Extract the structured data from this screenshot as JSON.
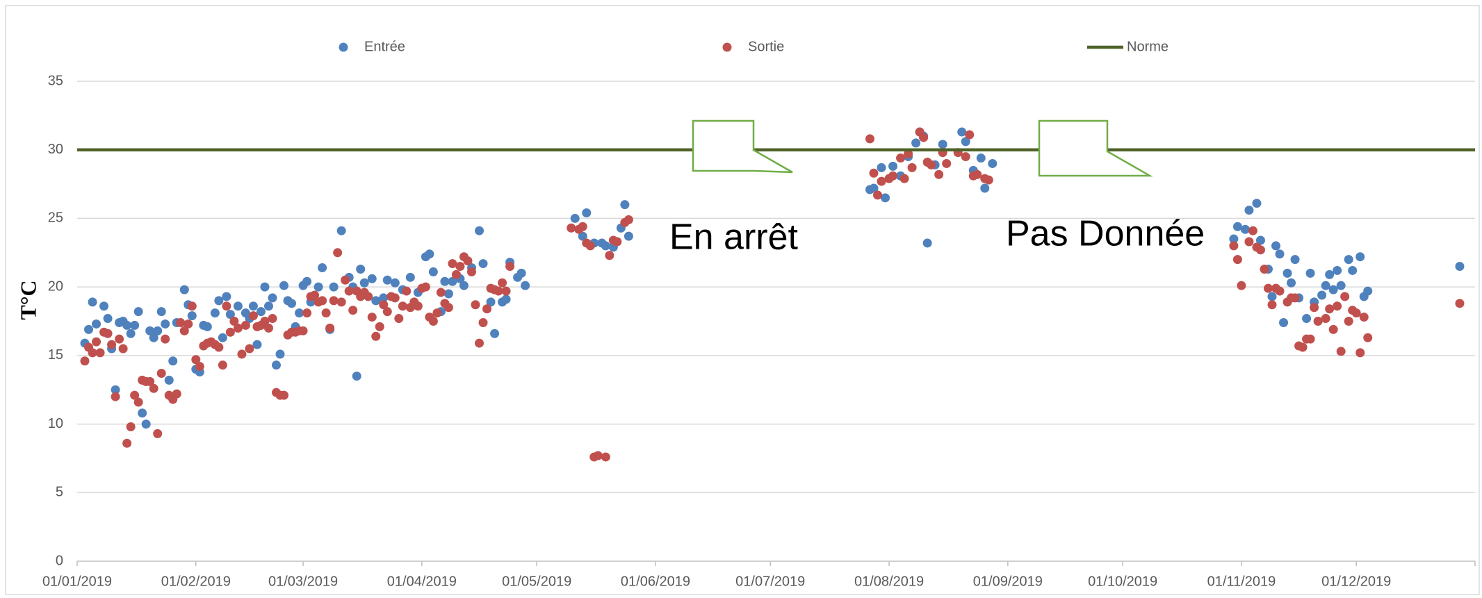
{
  "chart_data": {
    "type": "scatter",
    "ylabel": "T°C",
    "annotations": [
      "En arrêt",
      "Pas Donnée"
    ],
    "xlim": [
      "2019-01-01",
      "2020-01-01"
    ],
    "xticks": [
      {
        "value": "2019-01-01",
        "label": "01/01/2019"
      },
      {
        "value": "2019-02-01",
        "label": "01/02/2019"
      },
      {
        "value": "2019-03-01",
        "label": "01/03/2019"
      },
      {
        "value": "2019-04-01",
        "label": "01/04/2019"
      },
      {
        "value": "2019-05-01",
        "label": "01/05/2019"
      },
      {
        "value": "2019-06-01",
        "label": "01/06/2019"
      },
      {
        "value": "2019-07-01",
        "label": "01/07/2019"
      },
      {
        "value": "2019-08-01",
        "label": "01/08/2019"
      },
      {
        "value": "2019-09-01",
        "label": "01/09/2019"
      },
      {
        "value": "2019-10-01",
        "label": "01/10/2019"
      },
      {
        "value": "2019-11-01",
        "label": "01/11/2019"
      },
      {
        "value": "2019-12-01",
        "label": "01/12/2019"
      }
    ],
    "ylim": [
      0,
      35
    ],
    "yticks": [
      0,
      5,
      10,
      15,
      20,
      25,
      30,
      35
    ],
    "grid": true,
    "legend": "top",
    "series": [
      {
        "name": "Entrée",
        "color": "#4f81bd",
        "type": "scatter",
        "x": [
          "2019-01-03",
          "2019-01-04",
          "2019-01-05",
          "2019-01-06",
          "2019-01-08",
          "2019-01-09",
          "2019-01-10",
          "2019-01-11",
          "2019-01-12",
          "2019-01-13",
          "2019-01-14",
          "2019-01-15",
          "2019-01-16",
          "2019-01-17",
          "2019-01-18",
          "2019-01-19",
          "2019-01-20",
          "2019-01-21",
          "2019-01-22",
          "2019-01-23",
          "2019-01-24",
          "2019-01-25",
          "2019-01-26",
          "2019-01-27",
          "2019-01-29",
          "2019-01-30",
          "2019-01-31",
          "2019-02-01",
          "2019-02-02",
          "2019-02-03",
          "2019-02-04",
          "2019-02-06",
          "2019-02-07",
          "2019-02-08",
          "2019-02-09",
          "2019-02-10",
          "2019-02-12",
          "2019-02-14",
          "2019-02-15",
          "2019-02-16",
          "2019-02-17",
          "2019-02-18",
          "2019-02-19",
          "2019-02-20",
          "2019-02-21",
          "2019-02-22",
          "2019-02-23",
          "2019-02-24",
          "2019-02-25",
          "2019-02-26",
          "2019-02-27",
          "2019-02-28",
          "2019-03-01",
          "2019-03-02",
          "2019-03-03",
          "2019-03-05",
          "2019-03-06",
          "2019-03-08",
          "2019-03-09",
          "2019-03-11",
          "2019-03-13",
          "2019-03-14",
          "2019-03-15",
          "2019-03-16",
          "2019-03-17",
          "2019-03-19",
          "2019-03-20",
          "2019-03-22",
          "2019-03-23",
          "2019-03-25",
          "2019-03-27",
          "2019-03-29",
          "2019-03-31",
          "2019-04-02",
          "2019-04-03",
          "2019-04-04",
          "2019-04-06",
          "2019-04-07",
          "2019-04-08",
          "2019-04-09",
          "2019-04-11",
          "2019-04-12",
          "2019-04-14",
          "2019-04-16",
          "2019-04-17",
          "2019-04-19",
          "2019-04-20",
          "2019-04-22",
          "2019-04-23",
          "2019-04-24",
          "2019-04-26",
          "2019-04-27",
          "2019-04-28",
          "2019-05-11",
          "2019-05-13",
          "2019-05-14",
          "2019-05-16",
          "2019-05-18",
          "2019-05-19",
          "2019-05-21",
          "2019-05-23",
          "2019-05-24",
          "2019-05-25",
          "2019-07-27",
          "2019-07-28",
          "2019-07-30",
          "2019-07-31",
          "2019-08-02",
          "2019-08-04",
          "2019-08-06",
          "2019-08-08",
          "2019-08-09",
          "2019-08-10",
          "2019-08-11",
          "2019-08-13",
          "2019-08-15",
          "2019-08-20",
          "2019-08-21",
          "2019-08-23",
          "2019-08-25",
          "2019-08-26",
          "2019-08-28",
          "2019-10-30",
          "2019-10-31",
          "2019-11-02",
          "2019-11-03",
          "2019-11-05",
          "2019-11-06",
          "2019-11-08",
          "2019-11-09",
          "2019-11-10",
          "2019-11-11",
          "2019-11-12",
          "2019-11-13",
          "2019-11-14",
          "2019-11-15",
          "2019-11-16",
          "2019-11-18",
          "2019-11-19",
          "2019-11-20",
          "2019-11-22",
          "2019-11-23",
          "2019-11-24",
          "2019-11-25",
          "2019-11-26",
          "2019-11-27",
          "2019-11-29",
          "2019-11-30",
          "2019-12-02",
          "2019-12-03",
          "2019-12-04",
          "2019-12-28"
        ],
        "values": [
          15.9,
          16.9,
          18.9,
          17.3,
          18.6,
          17.7,
          15.5,
          12.5,
          17.4,
          17.5,
          17.2,
          16.6,
          17.2,
          18.2,
          10.8,
          10.0,
          16.8,
          16.3,
          16.8,
          18.2,
          17.3,
          13.2,
          14.6,
          17.4,
          19.8,
          18.7,
          17.9,
          14.0,
          13.8,
          17.2,
          17.1,
          18.1,
          19.0,
          16.3,
          19.3,
          18.0,
          18.6,
          18.1,
          17.7,
          18.6,
          15.8,
          18.2,
          20.0,
          18.6,
          19.2,
          14.3,
          15.1,
          20.1,
          19.0,
          18.8,
          17.1,
          18.1,
          20.1,
          20.4,
          18.9,
          20.0,
          21.4,
          16.9,
          20.0,
          24.1,
          20.7,
          20.0,
          13.5,
          21.3,
          20.3,
          20.6,
          19.0,
          19.2,
          20.5,
          20.3,
          19.8,
          20.7,
          19.6,
          22.2,
          22.4,
          21.1,
          18.2,
          20.4,
          19.5,
          20.4,
          20.6,
          20.1,
          21.4,
          24.1,
          21.7,
          18.9,
          16.6,
          18.9,
          19.1,
          21.8,
          20.7,
          21.0,
          20.1,
          25.0,
          23.7,
          25.4,
          23.2,
          23.2,
          23.0,
          22.9,
          24.3,
          26.0,
          23.7,
          27.1,
          27.2,
          28.7,
          26.5,
          28.8,
          28.1,
          29.5,
          30.5,
          31.3,
          31.0,
          23.2,
          28.9,
          30.4,
          31.3,
          30.6,
          28.5,
          29.4,
          27.2,
          29.0,
          23.5,
          24.4,
          24.2,
          25.6,
          26.1,
          23.4,
          21.3,
          19.3,
          23.0,
          22.4,
          17.4,
          21.0,
          20.3,
          22.0,
          19.2,
          17.7,
          21.0,
          18.9,
          19.4,
          20.1,
          20.9,
          19.8,
          21.2,
          20.1,
          22.0,
          21.2,
          22.2,
          19.3,
          19.7,
          21.5
        ]
      },
      {
        "name": "Sortie",
        "color": "#c0504d",
        "type": "scatter",
        "x": [
          "2019-01-03",
          "2019-01-04",
          "2019-01-05",
          "2019-01-06",
          "2019-01-07",
          "2019-01-08",
          "2019-01-09",
          "2019-01-10",
          "2019-01-11",
          "2019-01-12",
          "2019-01-13",
          "2019-01-14",
          "2019-01-15",
          "2019-01-16",
          "2019-01-17",
          "2019-01-18",
          "2019-01-19",
          "2019-01-20",
          "2019-01-21",
          "2019-01-22",
          "2019-01-23",
          "2019-01-24",
          "2019-01-25",
          "2019-01-26",
          "2019-01-27",
          "2019-01-28",
          "2019-01-29",
          "2019-01-30",
          "2019-01-31",
          "2019-02-01",
          "2019-02-02",
          "2019-02-03",
          "2019-02-04",
          "2019-02-05",
          "2019-02-06",
          "2019-02-07",
          "2019-02-08",
          "2019-02-09",
          "2019-02-10",
          "2019-02-11",
          "2019-02-12",
          "2019-02-13",
          "2019-02-14",
          "2019-02-15",
          "2019-02-16",
          "2019-02-17",
          "2019-02-18",
          "2019-02-19",
          "2019-02-20",
          "2019-02-21",
          "2019-02-22",
          "2019-02-23",
          "2019-02-24",
          "2019-02-25",
          "2019-02-26",
          "2019-02-27",
          "2019-02-28",
          "2019-03-01",
          "2019-03-02",
          "2019-03-03",
          "2019-03-04",
          "2019-03-05",
          "2019-03-06",
          "2019-03-07",
          "2019-03-08",
          "2019-03-09",
          "2019-03-10",
          "2019-03-11",
          "2019-03-12",
          "2019-03-13",
          "2019-03-14",
          "2019-03-15",
          "2019-03-16",
          "2019-03-17",
          "2019-03-18",
          "2019-03-19",
          "2019-03-20",
          "2019-03-21",
          "2019-03-22",
          "2019-03-23",
          "2019-03-24",
          "2019-03-25",
          "2019-03-26",
          "2019-03-27",
          "2019-03-28",
          "2019-03-29",
          "2019-03-30",
          "2019-03-31",
          "2019-04-01",
          "2019-04-02",
          "2019-04-03",
          "2019-04-04",
          "2019-04-05",
          "2019-04-06",
          "2019-04-07",
          "2019-04-08",
          "2019-04-09",
          "2019-04-10",
          "2019-04-11",
          "2019-04-12",
          "2019-04-13",
          "2019-04-14",
          "2019-04-15",
          "2019-04-16",
          "2019-04-17",
          "2019-04-18",
          "2019-04-19",
          "2019-04-20",
          "2019-04-21",
          "2019-04-22",
          "2019-04-23",
          "2019-04-24",
          "2019-05-10",
          "2019-05-12",
          "2019-05-13",
          "2019-05-14",
          "2019-05-15",
          "2019-05-16",
          "2019-05-17",
          "2019-05-19",
          "2019-05-20",
          "2019-05-21",
          "2019-05-22",
          "2019-05-24",
          "2019-05-25",
          "2019-07-27",
          "2019-07-28",
          "2019-07-29",
          "2019-07-30",
          "2019-08-01",
          "2019-08-02",
          "2019-08-04",
          "2019-08-05",
          "2019-08-06",
          "2019-08-07",
          "2019-08-09",
          "2019-08-10",
          "2019-08-11",
          "2019-08-12",
          "2019-08-14",
          "2019-08-15",
          "2019-08-16",
          "2019-08-19",
          "2019-08-21",
          "2019-08-22",
          "2019-08-23",
          "2019-08-24",
          "2019-08-26",
          "2019-08-27",
          "2019-10-30",
          "2019-10-31",
          "2019-11-01",
          "2019-11-03",
          "2019-11-04",
          "2019-11-05",
          "2019-11-06",
          "2019-11-07",
          "2019-11-08",
          "2019-11-09",
          "2019-11-10",
          "2019-11-11",
          "2019-11-13",
          "2019-11-14",
          "2019-11-15",
          "2019-11-16",
          "2019-11-17",
          "2019-11-18",
          "2019-11-19",
          "2019-11-20",
          "2019-11-21",
          "2019-11-23",
          "2019-11-24",
          "2019-11-25",
          "2019-11-26",
          "2019-11-27",
          "2019-11-28",
          "2019-11-29",
          "2019-11-30",
          "2019-12-01",
          "2019-12-02",
          "2019-12-03",
          "2019-12-04",
          "2019-12-28"
        ],
        "values": [
          14.6,
          15.6,
          15.2,
          16.0,
          15.2,
          16.7,
          16.6,
          15.8,
          12.0,
          16.2,
          15.5,
          8.6,
          9.8,
          12.1,
          11.6,
          13.2,
          13.1,
          13.1,
          12.6,
          9.3,
          13.7,
          16.2,
          12.1,
          11.8,
          12.2,
          17.4,
          16.8,
          17.3,
          18.6,
          14.7,
          14.2,
          15.7,
          15.9,
          16.0,
          15.8,
          15.6,
          14.3,
          18.6,
          16.7,
          17.5,
          17.0,
          15.1,
          17.2,
          15.5,
          17.9,
          17.1,
          17.2,
          17.5,
          17.0,
          17.7,
          12.3,
          12.1,
          12.1,
          16.5,
          16.7,
          16.7,
          16.8,
          16.8,
          18.1,
          19.3,
          19.4,
          18.9,
          19.0,
          18.1,
          17.0,
          19.0,
          22.5,
          18.9,
          20.5,
          19.7,
          18.3,
          19.7,
          19.3,
          19.6,
          19.3,
          17.8,
          16.4,
          17.1,
          18.7,
          18.2,
          19.3,
          19.2,
          17.7,
          18.6,
          19.7,
          18.5,
          18.9,
          18.6,
          19.9,
          20.0,
          17.8,
          17.5,
          18.1,
          19.6,
          18.8,
          18.5,
          21.7,
          20.9,
          21.5,
          22.2,
          21.9,
          21.1,
          18.7,
          15.9,
          17.4,
          18.4,
          19.9,
          19.8,
          19.7,
          20.3,
          19.7,
          21.5,
          24.3,
          24.2,
          24.4,
          23.2,
          23.0,
          7.6,
          7.7,
          7.6,
          22.3,
          23.4,
          23.3,
          24.7,
          24.9,
          30.8,
          28.3,
          26.7,
          27.7,
          27.9,
          28.1,
          29.4,
          27.9,
          29.7,
          28.7,
          31.3,
          30.9,
          29.1,
          28.9,
          28.2,
          29.8,
          29.0,
          29.8,
          29.5,
          31.1,
          28.1,
          28.2,
          27.9,
          27.8,
          23.0,
          22.0,
          20.1,
          23.3,
          24.1,
          22.9,
          22.7,
          21.3,
          19.9,
          18.7,
          19.9,
          19.7,
          18.9,
          19.2,
          19.2,
          15.7,
          15.6,
          16.2,
          16.2,
          18.5,
          17.5,
          17.7,
          18.4,
          16.9,
          18.6,
          15.3,
          19.3,
          17.5,
          18.3,
          18.1,
          15.2,
          17.8,
          16.3,
          18.8
        ]
      },
      {
        "name": "Norme",
        "color": "#4f6228",
        "type": "line",
        "x": [
          "2019-01-01",
          "2020-01-01"
        ],
        "values": [
          30,
          30
        ]
      }
    ]
  }
}
